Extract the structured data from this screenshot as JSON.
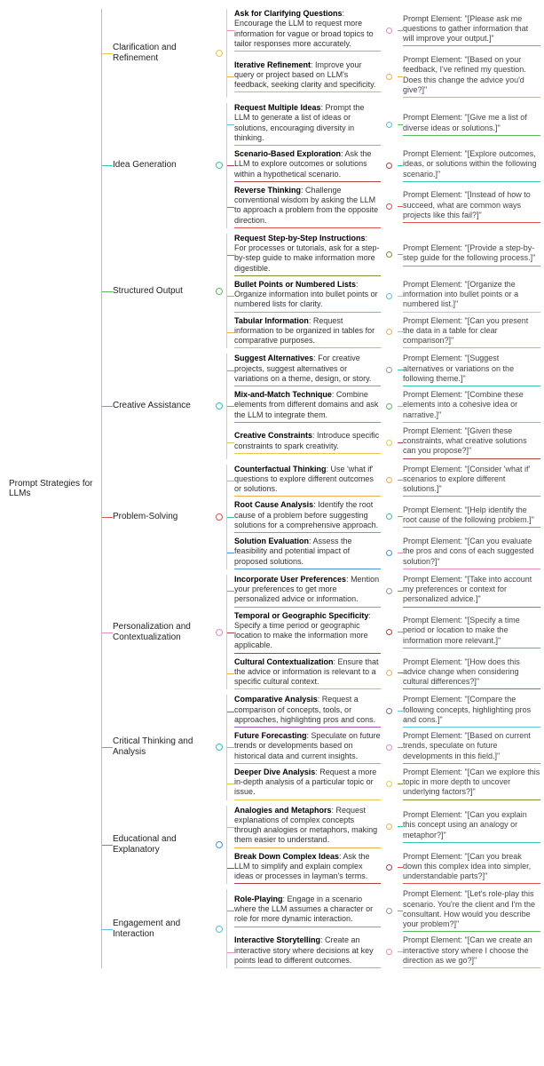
{
  "root": "Prompt Strategies for LLMs",
  "colors": {
    "yellow": "#e6c84a",
    "teal": "#3bbfb0",
    "red": "#d9534f",
    "cyan": "#5bc0de",
    "orange": "#f0ad4e",
    "green": "#5cb85c",
    "purple": "#9b59b6",
    "pink": "#e78bc2",
    "blue": "#4a90d9",
    "maroon": "#a94442",
    "olive": "#8a8a3a",
    "grey": "#999999"
  },
  "categories": [
    {
      "label": "Clarification and Refinement",
      "color": "yellow",
      "items": [
        {
          "title": "Ask for Clarifying Questions",
          "body": ": Encourage the LLM to request more information for vague or broad topics to tailor responses more accurately.",
          "prompt": "Prompt Element: \"[Please ask me questions to gather information that will improve your output.]\"",
          "ic": "pink",
          "pc": "grey"
        },
        {
          "title": "Iterative Refinement",
          "body": ": Improve your query or project based on LLM's feedback, seeking clarity and specificity.",
          "prompt": "Prompt Element: \"[Based on your feedback, I've refined my question. Does this change the advice you'd give?]\"",
          "ic": "orange",
          "pc": "orange"
        }
      ]
    },
    {
      "label": "Idea Generation",
      "color": "teal",
      "items": [
        {
          "title": "Request Multiple Ideas",
          "body": ": Prompt the LLM to generate a list of ideas or solutions, encouraging diversity in thinking.",
          "prompt": "Prompt Element: \"[Give me a list of diverse ideas or solutions.]\"",
          "ic": "cyan",
          "pc": "green"
        },
        {
          "title": "Scenario-Based Exploration",
          "body": ": Ask the LLM to explore outcomes or solutions within a hypothetical scenario.",
          "prompt": "Prompt Element: \"[Explore outcomes, ideas, or solutions within the following scenario.]\"",
          "ic": "maroon",
          "pc": "teal"
        },
        {
          "title": "Reverse Thinking",
          "body": ": Challenge conventional wisdom by asking the LLM to approach a problem from the opposite direction.",
          "prompt": "Prompt Element: \"[Instead of how to succeed, what are common ways projects like this fail?]\"",
          "ic": "red",
          "pc": "red"
        }
      ]
    },
    {
      "label": "Structured Output",
      "color": "green",
      "items": [
        {
          "title": "Request Step-by-Step Instructions",
          "body": ": For processes or tutorials, ask for a step-by-step guide to make information more digestible.",
          "prompt": "Prompt Element: \"[Provide a step-by-step guide for the following process.]\"",
          "ic": "olive",
          "pc": "grey"
        },
        {
          "title": "Bullet Points or Numbered Lists",
          "body": ": Organize information into bullet points or numbered lists for clarity.",
          "prompt": "Prompt Element: \"[Organize the information into bullet points or a numbered list.]\"",
          "ic": "cyan",
          "pc": "yellow"
        },
        {
          "title": "Tabular Information",
          "body": ": Request information to be organized in tables for comparative purposes.",
          "prompt": "Prompt Element: \"[Can you present the data in a table for clear comparison?]\"",
          "ic": "orange",
          "pc": "orange"
        }
      ]
    },
    {
      "label": "Creative Assistance",
      "color": "teal",
      "items": [
        {
          "title": "Suggest Alternatives",
          "body": ": For creative projects, suggest alternatives or variations on a theme, design, or story.",
          "prompt": "Prompt Element: \"[Suggest alternatives or variations on the following theme.]\"",
          "ic": "grey",
          "pc": "teal"
        },
        {
          "title": "Mix-and-Match Technique",
          "body": ": Combine elements from different domains and ask the LLM to integrate them.",
          "prompt": "Prompt Element: \"[Combine these elements into a cohesive idea or narrative.]\"",
          "ic": "green",
          "pc": "pink"
        },
        {
          "title": "Creative Constraints",
          "body": ": Introduce specific constraints to spark creativity.",
          "prompt": "Prompt Element: \"[Given these constraints, what creative solutions can you propose?]\"",
          "ic": "yellow",
          "pc": "maroon"
        }
      ]
    },
    {
      "label": "Problem-Solving",
      "color": "red",
      "items": [
        {
          "title": "Counterfactual Thinking",
          "body": ": Use 'what if' questions to explore different outcomes or solutions.",
          "prompt": "Prompt Element: \"[Consider 'what if' scenarios to explore different solutions.]\"",
          "ic": "orange",
          "pc": "grey"
        },
        {
          "title": "Root Cause Analysis",
          "body": ": Identify the root cause of a problem before suggesting solutions for a comprehensive approach.",
          "prompt": "Prompt Element: \"[Help identify the root cause of the following problem.]\"",
          "ic": "teal",
          "pc": "green"
        },
        {
          "title": "Solution Evaluation",
          "body": ": Assess the feasibility and potential impact of proposed solutions.",
          "prompt": "Prompt Element: \"[Can you evaluate the pros and cons of each suggested solution?]\"",
          "ic": "blue",
          "pc": "pink"
        }
      ]
    },
    {
      "label": "Personalization and Contextualization",
      "color": "pink",
      "items": [
        {
          "title": "Incorporate User Preferences",
          "body": ": Mention your preferences to get more personalized advice or information.",
          "prompt": "Prompt Element: \"[Take into account my preferences or context for personalized advice.]\"",
          "ic": "grey",
          "pc": "olive"
        },
        {
          "title": "Temporal or Geographic Specificity",
          "body": ": Specify a time period or geographic location to make the information more applicable.",
          "prompt": "Prompt Element: \"[Specify a time period or location to make the information more relevant.]\"",
          "ic": "maroon",
          "pc": "teal"
        },
        {
          "title": "Cultural Contextualization",
          "body": ": Ensure that the advice or information is relevant to a specific cultural context.",
          "prompt": "Prompt Element: \"[How does this advice change when considering cultural differences?]\"",
          "ic": "orange",
          "pc": "red"
        }
      ]
    },
    {
      "label": "Critical Thinking and Analysis",
      "color": "teal",
      "items": [
        {
          "title": "Comparative Analysis",
          "body": ": Request a comparison of concepts, tools, or approaches, highlighting pros and cons.",
          "prompt": "Prompt Element: \"[Compare the following concepts, highlighting pros and cons.]\"",
          "ic": "purple",
          "pc": "cyan"
        },
        {
          "title": "Future Forecasting",
          "body": ": Speculate on future trends or developments based on historical data and current insights.",
          "prompt": "Prompt Element: \"[Based on current trends, speculate on future developments in this field.]\"",
          "ic": "pink",
          "pc": "green"
        },
        {
          "title": "Deeper Dive Analysis",
          "body": ": Request a more in-depth analysis of a particular topic or issue.",
          "prompt": "Prompt Element: \"[Can we explore this topic in more depth to uncover underlying factors?]\"",
          "ic": "yellow",
          "pc": "olive"
        }
      ]
    },
    {
      "label": "Educational and Explanatory",
      "color": "blue",
      "items": [
        {
          "title": "Analogies and Metaphors",
          "body": ": Request explanations of complex concepts through analogies or metaphors, making them easier to understand.",
          "prompt": "Prompt Element: \"[Can you explain this concept using an analogy or metaphor?]\"",
          "ic": "orange",
          "pc": "teal"
        },
        {
          "title": "Break Down Complex Ideas",
          "body": ": Ask the LLM to simplify and explain complex ideas or processes in layman's terms.",
          "prompt": "Prompt Element: \"[Can you break down this complex idea into simpler, understandable parts?]\"",
          "ic": "maroon",
          "pc": "red"
        }
      ]
    },
    {
      "label": "Engagement and Interaction",
      "color": "cyan",
      "items": [
        {
          "title": "Role-Playing",
          "body": ": Engage in a scenario where the LLM assumes a character or role for more dynamic interaction.",
          "prompt": "Prompt Element: \"[Let's role-play this scenario. You're the client and I'm the consultant. How would you describe your problem?]\"",
          "ic": "grey",
          "pc": "green"
        },
        {
          "title": "Interactive Storytelling",
          "body": ": Create an interactive story where decisions at key points lead to different outcomes.",
          "prompt": "Prompt Element: \"[Can we create an interactive story where I choose the direction as we go?]\"",
          "ic": "pink",
          "pc": "orange"
        }
      ]
    }
  ]
}
